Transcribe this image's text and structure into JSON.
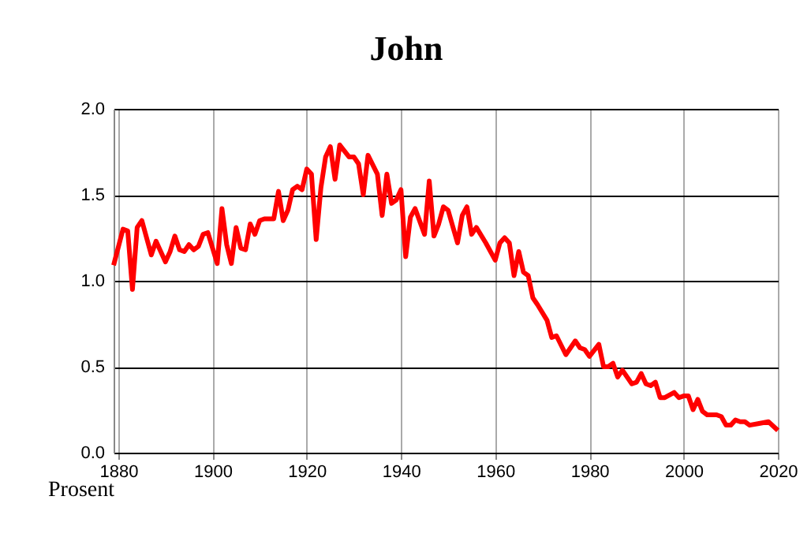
{
  "chart_data": {
    "type": "line",
    "title": "John",
    "ylabel": "Prosent",
    "x": [
      1879,
      1881,
      1882,
      1883,
      1884,
      1885,
      1887,
      1888,
      1890,
      1891,
      1892,
      1893,
      1894,
      1895,
      1896,
      1897,
      1898,
      1899,
      1901,
      1902,
      1903,
      1904,
      1905,
      1906,
      1907,
      1908,
      1909,
      1910,
      1911,
      1913,
      1914,
      1915,
      1916,
      1917,
      1918,
      1919,
      1920,
      1921,
      1922,
      1923,
      1924,
      1925,
      1926,
      1927,
      1929,
      1930,
      1931,
      1932,
      1933,
      1935,
      1936,
      1937,
      1938,
      1939,
      1940,
      1941,
      1942,
      1943,
      1945,
      1946,
      1947,
      1948,
      1949,
      1950,
      1952,
      1953,
      1954,
      1955,
      1956,
      1958,
      1960,
      1961,
      1962,
      1963,
      1964,
      1965,
      1966,
      1967,
      1968,
      1969,
      1971,
      1972,
      1973,
      1975,
      1977,
      1978,
      1979,
      1980,
      1982,
      1983,
      1984,
      1985,
      1986,
      1987,
      1989,
      1990,
      1991,
      1992,
      1993,
      1994,
      1995,
      1996,
      1998,
      1999,
      2000,
      2001,
      2002,
      2003,
      2004,
      2005,
      2007,
      2008,
      2009,
      2010,
      2011,
      2012,
      2013,
      2014,
      2016,
      2018,
      2020
    ],
    "series": [
      {
        "color": "#ff0000",
        "values": [
          1.09,
          1.3,
          1.29,
          0.95,
          1.31,
          1.35,
          1.15,
          1.23,
          1.11,
          1.17,
          1.26,
          1.18,
          1.17,
          1.21,
          1.18,
          1.2,
          1.27,
          1.28,
          1.1,
          1.42,
          1.21,
          1.1,
          1.31,
          1.19,
          1.18,
          1.33,
          1.27,
          1.35,
          1.36,
          1.36,
          1.52,
          1.35,
          1.41,
          1.53,
          1.55,
          1.53,
          1.65,
          1.62,
          1.24,
          1.54,
          1.72,
          1.78,
          1.59,
          1.79,
          1.72,
          1.72,
          1.68,
          1.5,
          1.73,
          1.62,
          1.38,
          1.62,
          1.45,
          1.47,
          1.53,
          1.14,
          1.37,
          1.42,
          1.27,
          1.58,
          1.26,
          1.33,
          1.43,
          1.41,
          1.22,
          1.38,
          1.43,
          1.27,
          1.31,
          1.22,
          1.12,
          1.22,
          1.25,
          1.22,
          1.03,
          1.17,
          1.05,
          1.03,
          0.9,
          0.86,
          0.77,
          0.67,
          0.68,
          0.57,
          0.65,
          0.61,
          0.6,
          0.56,
          0.63,
          0.5,
          0.5,
          0.52,
          0.44,
          0.48,
          0.4,
          0.41,
          0.46,
          0.4,
          0.39,
          0.41,
          0.32,
          0.32,
          0.35,
          0.32,
          0.33,
          0.33,
          0.25,
          0.31,
          0.24,
          0.22,
          0.22,
          0.21,
          0.16,
          0.16,
          0.19,
          0.18,
          0.18,
          0.16,
          0.17,
          0.18,
          0.13
        ]
      }
    ],
    "xlim": [
      1879,
      2020
    ],
    "xticks": [
      1880,
      1900,
      1920,
      1940,
      1960,
      1980,
      2000,
      2020
    ],
    "ylim": [
      0,
      2
    ],
    "yticks": [
      {
        "value": 0,
        "label": "0.0"
      },
      {
        "value": 0.5,
        "label": "0.5"
      },
      {
        "value": 1,
        "label": "1.0"
      },
      {
        "value": 1.5,
        "label": "1.5"
      },
      {
        "value": 2,
        "label": "2.0"
      }
    ],
    "grid": true,
    "line_style": "solid",
    "marker": "none"
  }
}
